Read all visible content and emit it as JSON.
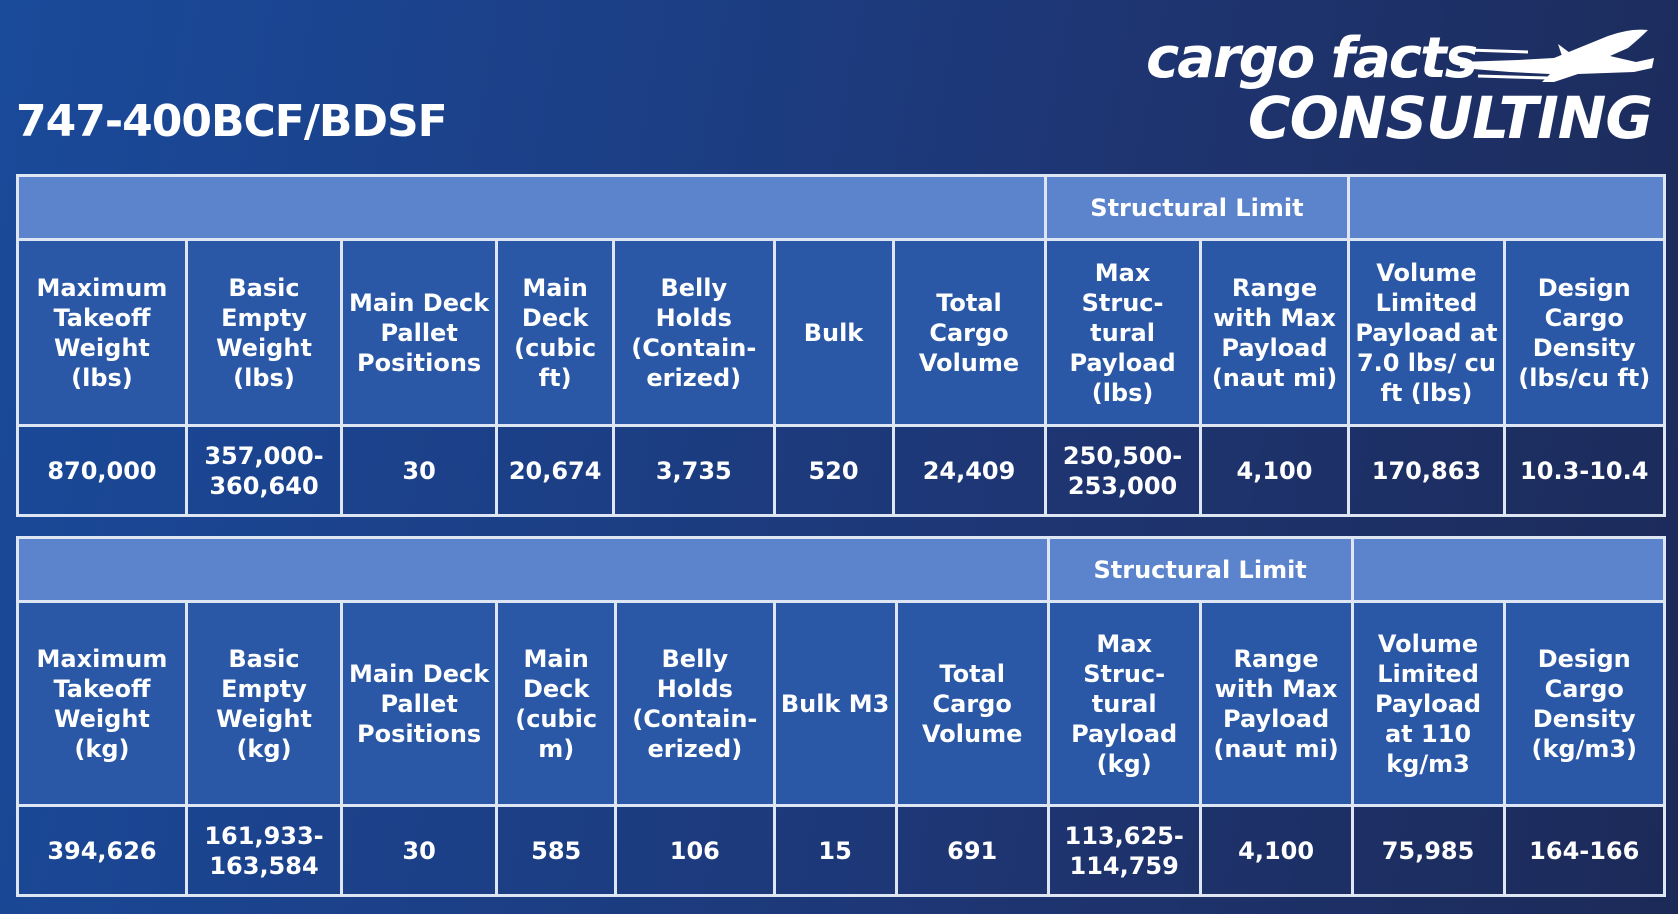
{
  "title": "747-400BCF/BDSF",
  "logo": {
    "line1": "cargo facts",
    "line2": "CONSULTING",
    "icon": "airplane-icon"
  },
  "tables": [
    {
      "band_label": "Structural Limit",
      "headers": [
        "Maximum Takeoff Weight (lbs)",
        "Basic Empty Weight (lbs)",
        "Main Deck Pallet Positions",
        "Main Deck (cubic ft)",
        "Belly Holds (Contain-erized)",
        "Bulk",
        "Total Cargo Volume",
        "Max Struc-tural Payload (lbs)",
        "Range with Max Payload (naut mi)",
        "Volume Limited Payload at 7.0 lbs/ cu ft (lbs)",
        "Design Cargo Density (lbs/cu ft)"
      ],
      "values": [
        "870,000",
        "357,000-360,640",
        "30",
        "20,674",
        "3,735",
        "520",
        "24,409",
        "250,500-253,000",
        "4,100",
        "170,863",
        "10.3-10.4"
      ]
    },
    {
      "band_label": "Structural Limit",
      "headers": [
        "Maximum Takeoff Weight (kg)",
        "Basic Empty Weight (kg)",
        "Main Deck Pallet Positions",
        "Main Deck (cubic m)",
        "Belly Holds (Contain-erized)",
        "Bulk M3",
        "Total Cargo Volume",
        "Max Struc-tural Payload (kg)",
        "Range with Max Payload (naut mi)",
        "Volume Limited Payload at 110 kg/m3",
        "Design Cargo Density (kg/m3)"
      ],
      "values": [
        "394,626",
        "161,933-163,584",
        "30",
        "585",
        "106",
        "15",
        "691",
        "113,625-114,759",
        "4,100",
        "75,985",
        "164-166"
      ]
    }
  ]
}
